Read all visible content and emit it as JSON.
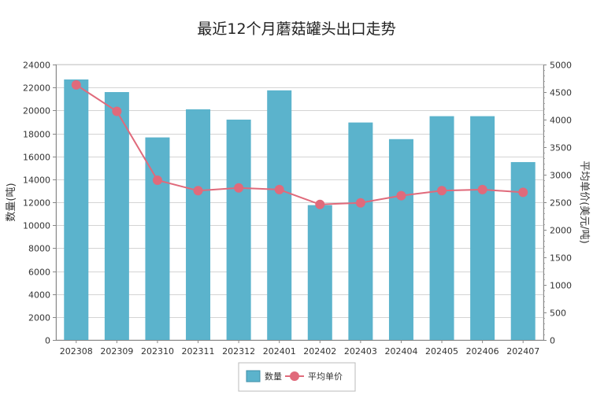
{
  "chart_data": {
    "type": "bar",
    "title": "最近12个月蘑菇罐头出口走势",
    "categories": [
      "202308",
      "202309",
      "202310",
      "202311",
      "202312",
      "202401",
      "202402",
      "202403",
      "202404",
      "202405",
      "202406",
      "202407"
    ],
    "series": [
      {
        "name": "数量",
        "type": "bar",
        "axis": "left",
        "color": "#5bb3cc",
        "values": [
          22700,
          21600,
          17650,
          20100,
          19200,
          21750,
          11750,
          18950,
          17500,
          19500,
          19500,
          15500
        ]
      },
      {
        "name": "平均单价",
        "type": "line",
        "axis": "right",
        "color": "#e06a7b",
        "values": [
          4630,
          4150,
          2900,
          2710,
          2760,
          2730,
          2460,
          2490,
          2620,
          2710,
          2730,
          2680
        ]
      }
    ],
    "ylabel": "数量(吨)",
    "ylabel_right": "平均单价(美元/吨)",
    "ylim": [
      0,
      24000
    ],
    "ylim_right": [
      0,
      5000
    ],
    "yticks": [
      0,
      2000,
      4000,
      6000,
      8000,
      10000,
      12000,
      14000,
      16000,
      18000,
      20000,
      22000,
      24000
    ],
    "yticks_right": [
      0,
      500,
      1000,
      1500,
      2000,
      2500,
      3000,
      3500,
      4000,
      4500,
      5000
    ],
    "grid": true,
    "legend_position": "bottom"
  }
}
